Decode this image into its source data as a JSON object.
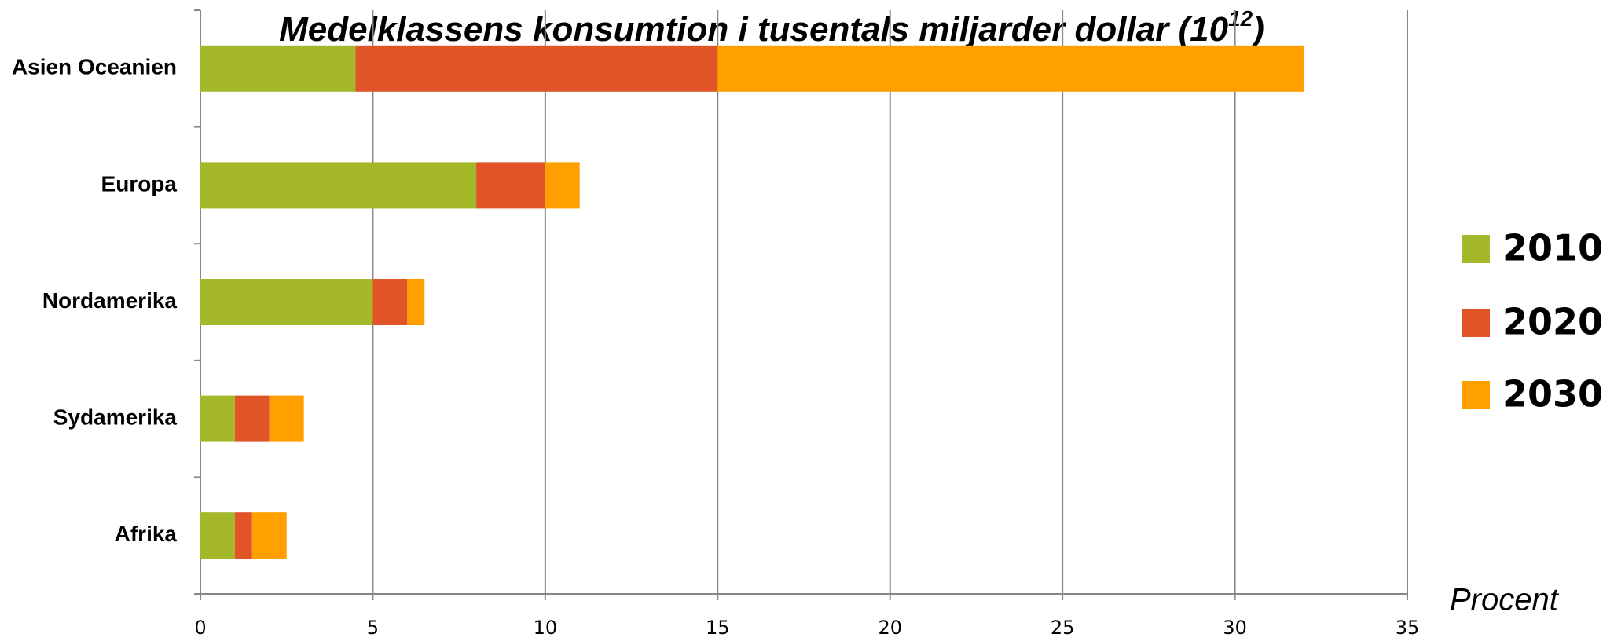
{
  "chart_data": {
    "type": "stacked-barh",
    "title": [
      "Medelklassens konsumtion i tusentals miljarder dollar (10",
      "12",
      ")"
    ],
    "xlabel": "Procent",
    "categories": [
      "Asien Oceanien",
      "Europa",
      "Nordamerika",
      "Sydamerika",
      "Afrika"
    ],
    "series": [
      {
        "name": "2010",
        "color": "#a5b82a",
        "values": [
          4.5,
          8,
          5,
          1,
          1
        ]
      },
      {
        "name": "2020",
        "color": "#e05428",
        "values": [
          10.5,
          2,
          1,
          1,
          0.5
        ]
      },
      {
        "name": "2030",
        "color": "#ff9f00",
        "values": [
          17,
          1,
          0.5,
          1,
          1
        ]
      }
    ],
    "xlim": [
      0,
      35
    ],
    "xticks": [
      0,
      5,
      10,
      15,
      20,
      25,
      30,
      35
    ],
    "grid": true,
    "legend": "right"
  }
}
